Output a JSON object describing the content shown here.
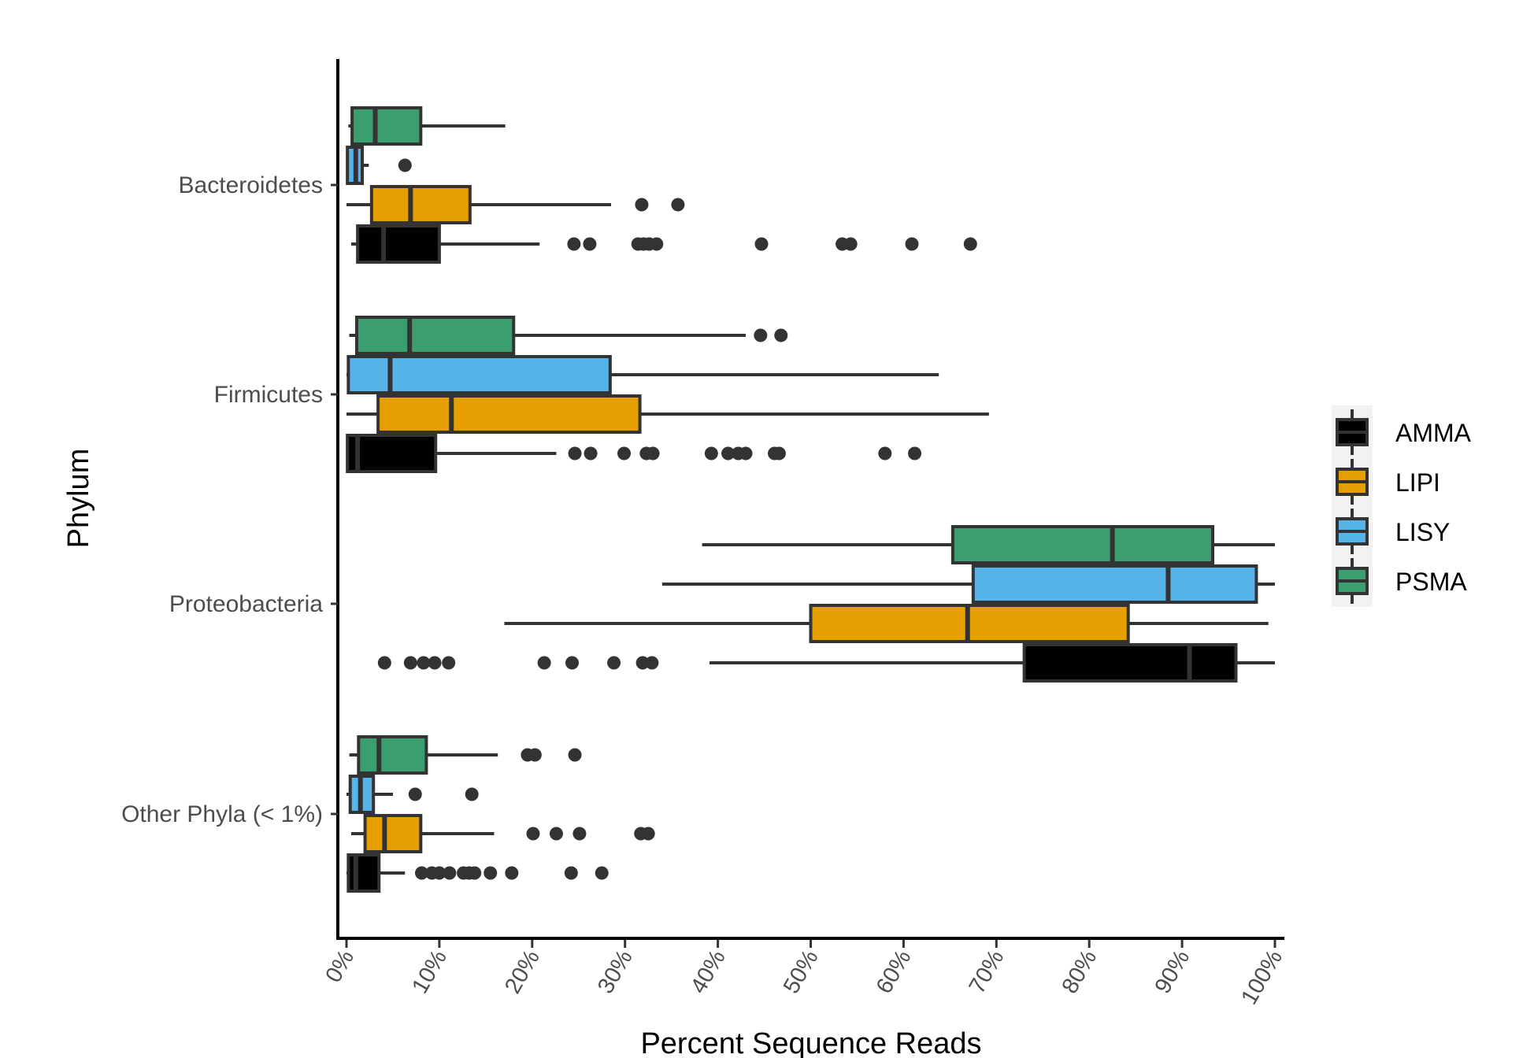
{
  "chart_data": {
    "type": "boxplot-horizontal",
    "title": "",
    "xlabel": "Percent Sequence Reads",
    "ylabel": "Phylum",
    "xlim": [
      0,
      100
    ],
    "x_ticks": [
      "0%",
      "10%",
      "20%",
      "30%",
      "40%",
      "50%",
      "60%",
      "70%",
      "80%",
      "90%",
      "100%"
    ],
    "x_tick_values": [
      0,
      10,
      20,
      30,
      40,
      50,
      60,
      70,
      80,
      90,
      100
    ],
    "categories": [
      "Bacteroidetes",
      "Firmicutes",
      "Proteobacteria",
      "Other Phyla (< 1%)"
    ],
    "legend": {
      "position": "right",
      "entries": [
        "AMMA",
        "LIPI",
        "LISY",
        "PSMA"
      ]
    },
    "series": [
      {
        "name": "AMMA",
        "color": "#000000",
        "boxes": [
          {
            "category": "Bacteroidetes",
            "min": 0.5,
            "q1": 1.2,
            "median": 4.0,
            "q3": 10.0,
            "max": 20.8,
            "outliers": [
              24.5,
              26.2,
              31.4,
              32.0,
              32.6,
              33.4,
              44.7,
              53.4,
              54.3,
              60.9,
              67.2
            ]
          },
          {
            "category": "Firmicutes",
            "min": 0.0,
            "q1": 0.1,
            "median": 1.2,
            "q3": 9.6,
            "max": 22.6,
            "outliers": [
              24.6,
              26.3,
              29.9,
              32.3,
              33.0,
              39.3,
              41.1,
              42.2,
              43.0,
              46.1,
              46.6,
              58.0,
              61.2
            ]
          },
          {
            "category": "Proteobacteria",
            "min": 39.1,
            "q1": 73.0,
            "median": 90.8,
            "q3": 95.8,
            "max": 100.0,
            "outliers": [
              4.1,
              6.9,
              8.3,
              9.5,
              11.0,
              21.3,
              24.3,
              28.8,
              31.9,
              32.9
            ]
          },
          {
            "category": "Other Phyla (< 1%)",
            "min": 0.0,
            "q1": 0.2,
            "median": 1.0,
            "q3": 3.5,
            "max": 6.3,
            "outliers": [
              8.1,
              9.2,
              10.0,
              11.1,
              12.6,
              13.2,
              13.8,
              15.5,
              17.8,
              24.2,
              27.5
            ]
          }
        ]
      },
      {
        "name": "LIPI",
        "color": "#E69F00",
        "boxes": [
          {
            "category": "Bacteroidetes",
            "min": 0.0,
            "q1": 2.7,
            "median": 6.9,
            "q3": 13.3,
            "max": 28.5,
            "outliers": [
              31.8,
              35.7
            ]
          },
          {
            "category": "Firmicutes",
            "min": 0.0,
            "q1": 3.4,
            "median": 11.3,
            "q3": 31.6,
            "max": 69.2,
            "outliers": []
          },
          {
            "category": "Proteobacteria",
            "min": 17.0,
            "q1": 50.0,
            "median": 66.9,
            "q3": 84.2,
            "max": 99.3,
            "outliers": []
          },
          {
            "category": "Other Phyla (< 1%)",
            "min": 0.5,
            "q1": 2.0,
            "median": 4.1,
            "q3": 8.0,
            "max": 15.9,
            "outliers": [
              20.1,
              22.6,
              25.1,
              31.7,
              32.5
            ]
          }
        ]
      },
      {
        "name": "LISY",
        "color": "#56B4E9",
        "boxes": [
          {
            "category": "Bacteroidetes",
            "min": 0.0,
            "q1": 0.1,
            "median": 1.0,
            "q3": 1.7,
            "max": 2.4,
            "outliers": [
              6.3
            ]
          },
          {
            "category": "Firmicutes",
            "min": 0.0,
            "q1": 0.2,
            "median": 4.7,
            "q3": 28.4,
            "max": 63.8,
            "outliers": []
          },
          {
            "category": "Proteobacteria",
            "min": 34.0,
            "q1": 67.5,
            "median": 88.5,
            "q3": 98.0,
            "max": 100.0,
            "outliers": []
          },
          {
            "category": "Other Phyla (< 1%)",
            "min": 0.0,
            "q1": 0.4,
            "median": 1.5,
            "q3": 2.9,
            "max": 5.0,
            "outliers": [
              7.4,
              13.5
            ]
          }
        ]
      },
      {
        "name": "PSMA",
        "color": "#3A9E6E",
        "boxes": [
          {
            "category": "Bacteroidetes",
            "min": 0.2,
            "q1": 0.6,
            "median": 3.1,
            "q3": 8.0,
            "max": 17.1,
            "outliers": []
          },
          {
            "category": "Firmicutes",
            "min": 0.3,
            "q1": 1.1,
            "median": 6.8,
            "q3": 18.0,
            "max": 43.0,
            "outliers": [
              44.6,
              46.8
            ]
          },
          {
            "category": "Proteobacteria",
            "min": 38.3,
            "q1": 65.3,
            "median": 82.5,
            "q3": 93.3,
            "max": 100.0,
            "outliers": []
          },
          {
            "category": "Other Phyla (< 1%)",
            "min": 0.3,
            "q1": 1.3,
            "median": 3.5,
            "q3": 8.6,
            "max": 16.3,
            "outliers": [
              19.5,
              20.3,
              24.6
            ]
          }
        ]
      }
    ]
  }
}
